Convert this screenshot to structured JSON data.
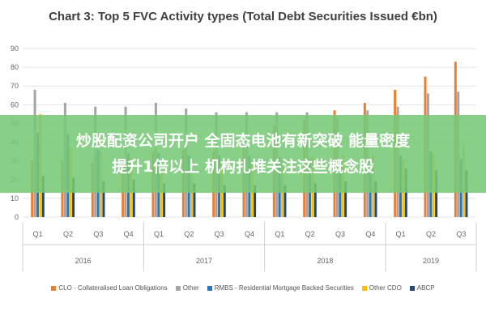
{
  "banner": {
    "line1": "炒股配资公司开户 全固态电池有新突破 能量密度",
    "line2": "提升1倍以上 机构扎堆关注这些概念股"
  },
  "chart_data": {
    "type": "bar",
    "title": "Chart 3: Top 5 FVC Activity types (Total Debt Securities Issued €bn)",
    "ylim": [
      0,
      90
    ],
    "yticks": [
      0,
      10,
      20,
      30,
      40,
      50,
      60,
      70,
      80,
      90
    ],
    "grid": true,
    "legend_position": "bottom",
    "categories": [
      "Q1",
      "Q2",
      "Q3",
      "Q4",
      "Q1",
      "Q2",
      "Q3",
      "Q4",
      "Q1",
      "Q2",
      "Q3",
      "Q4",
      "Q1",
      "Q2",
      "Q3"
    ],
    "years": [
      {
        "label": "2016",
        "quarters": 4
      },
      {
        "label": "2017",
        "quarters": 4
      },
      {
        "label": "2018",
        "quarters": 4
      },
      {
        "label": "2019",
        "quarters": 3
      }
    ],
    "series": [
      {
        "name": "CLO - Collateralised Loan Obligations",
        "color": "#ED7D31",
        "values": [
          30,
          30,
          29,
          30,
          35,
          36,
          35,
          37,
          49,
          52,
          57,
          61,
          68,
          75,
          83
        ]
      },
      {
        "name": "Other",
        "color": "#A5A5A5",
        "values": [
          68,
          61,
          59,
          59,
          61,
          58,
          56,
          56,
          56,
          56,
          53,
          57,
          59,
          66,
          67
        ]
      },
      {
        "name": "RMBS - Residential Mortgage Backed Securities",
        "color": "#2E75B6",
        "values": [
          45,
          44,
          36,
          34,
          34,
          33,
          33,
          33,
          32,
          31,
          30,
          30,
          33,
          35,
          31
        ]
      },
      {
        "name": "Other CDO",
        "color": "#FFC000",
        "values": [
          55,
          37,
          35,
          32,
          30,
          31,
          30,
          30,
          31,
          32,
          33,
          33,
          31,
          34,
          38
        ]
      },
      {
        "name": "ABCP",
        "color": "#264478",
        "values": [
          22,
          21,
          19,
          20,
          18,
          18,
          17,
          17,
          17,
          18,
          19,
          19,
          26,
          25,
          25
        ]
      }
    ]
  }
}
